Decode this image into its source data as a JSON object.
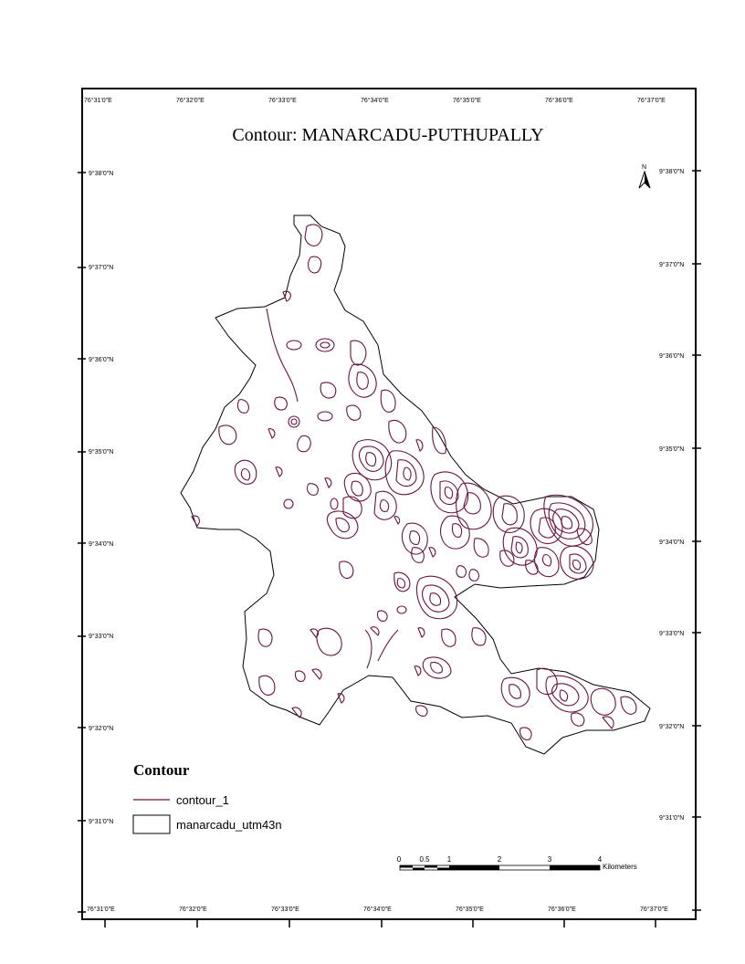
{
  "map": {
    "title": "Contour: MANARCADU-PUTHUPALLY",
    "north_label": "N",
    "top_lon_labels": [
      "76°31'0\"E",
      "76°32'0\"E",
      "76°33'0\"E",
      "76°34'0\"E",
      "76°35'0\"E",
      "76°36'0\"E",
      "76°37'0\"E"
    ],
    "bottom_lon_labels": [
      "76°31'0\"E",
      "76°32'0\"E",
      "76°33'0\"E",
      "76°34'0\"E",
      "76°35'0\"E",
      "76°36'0\"E",
      "76°37'0\"E"
    ],
    "left_lat_labels": [
      "9°38'0\"N",
      "9°37'0\"N",
      "9°36'0\"N",
      "9°35'0\"N",
      "9°34'0\"N",
      "9°33'0\"N",
      "9°32'0\"N",
      "9°31'0\"N"
    ],
    "right_lat_labels": [
      "9°38'0\"N",
      "9°37'0\"N",
      "9°36'0\"N",
      "9°35'0\"N",
      "9°34'0\"N",
      "9°33'0\"N",
      "9°32'0\"N",
      "9°31'0\"N"
    ],
    "legend": {
      "title": "Contour",
      "items": [
        {
          "label": "contour_1",
          "symbol": "line"
        },
        {
          "label": "manarcadu_utm43n",
          "symbol": "box"
        }
      ]
    },
    "scale_bar": {
      "ticks": [
        "0",
        "0.5",
        "1",
        "2",
        "3",
        "4"
      ],
      "unit": "Kilometers"
    },
    "colors": {
      "contour": "#6b1245",
      "boundary": "#000000"
    }
  }
}
